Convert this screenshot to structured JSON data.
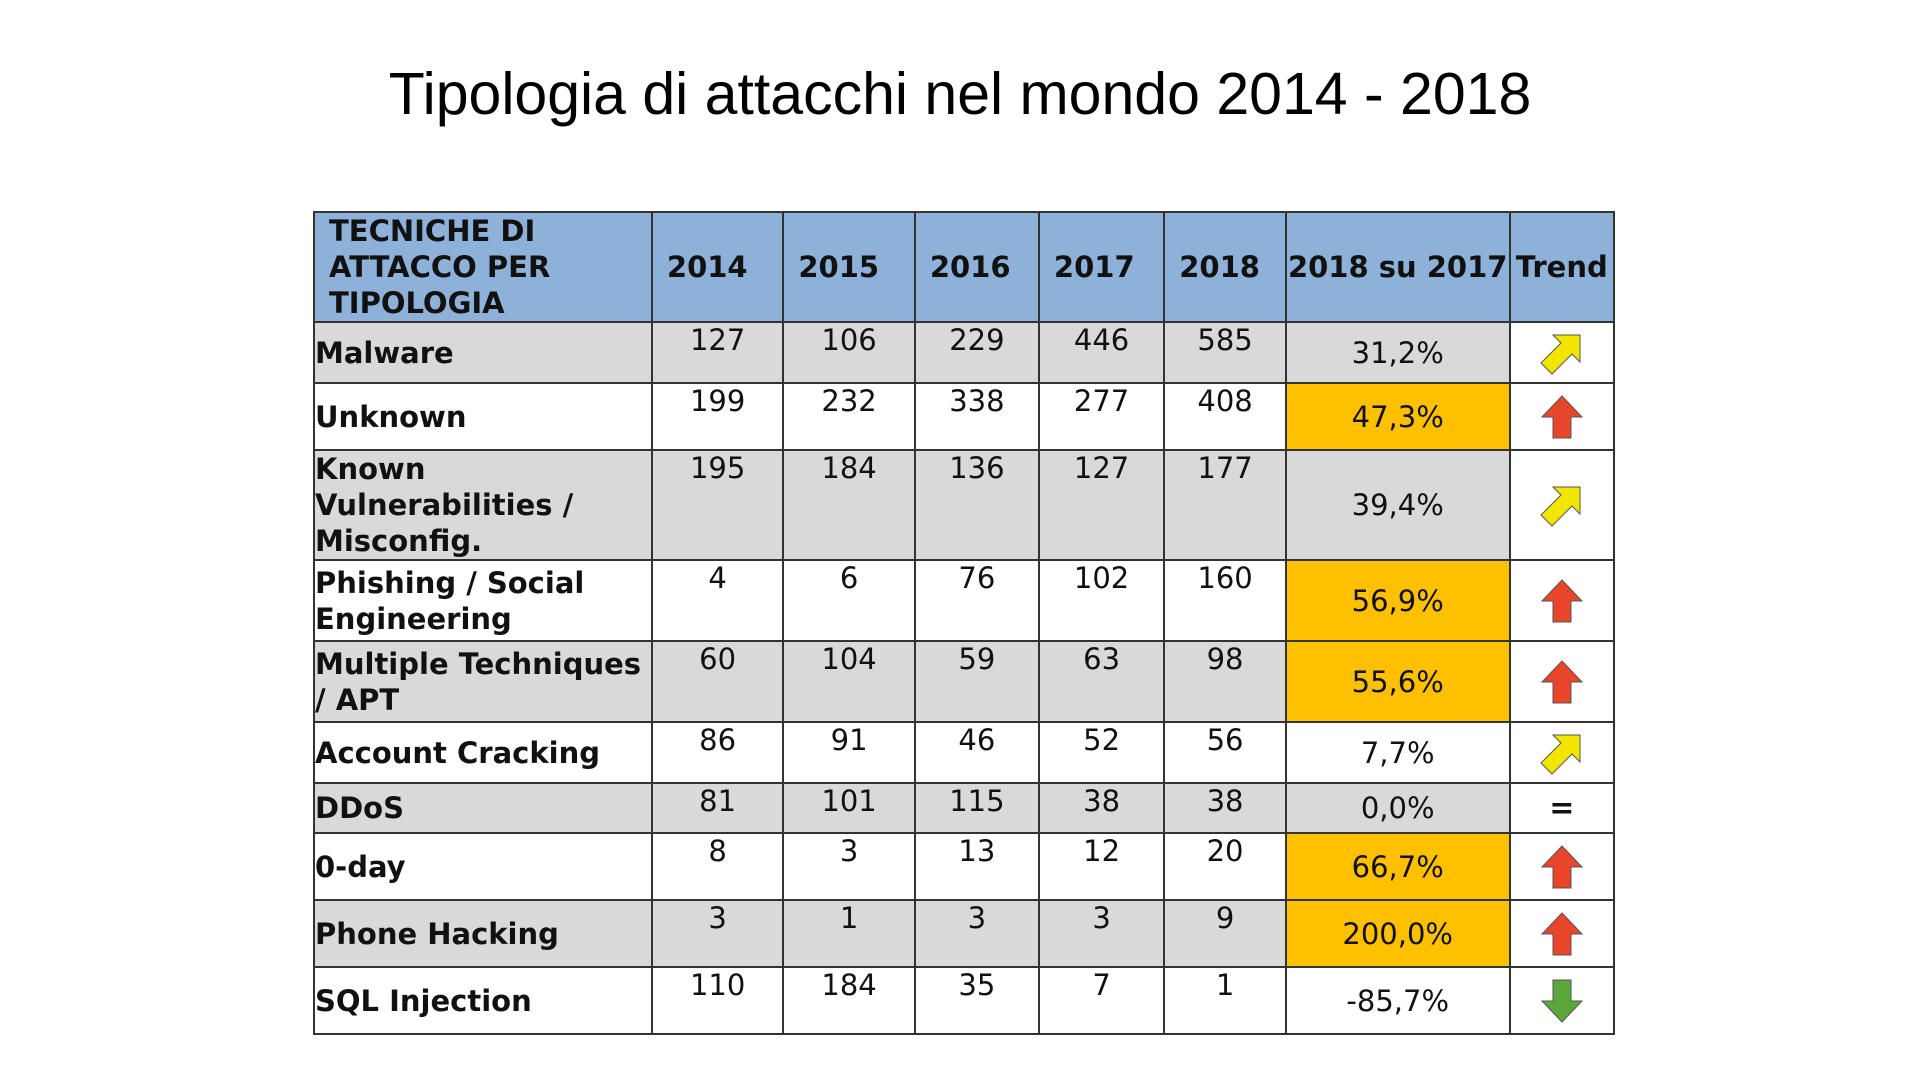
{
  "slide": {
    "title": "Tipologia di attacchi nel mondo 2014 - 2018"
  },
  "table": {
    "headers": [
      "TECNICHE DI ATTACCO PER TIPOLOGIA",
      "2014",
      "2015",
      "2016",
      "2017",
      "2018",
      "2018 su 2017",
      "Trend"
    ],
    "rows": [
      {
        "name": "Malware",
        "values": [
          "127",
          "106",
          "229",
          "446",
          "585"
        ],
        "change": "31,2%",
        "highlight": false,
        "trend": "up-right-arrow-icon",
        "shade": true
      },
      {
        "name": "Unknown",
        "values": [
          "199",
          "232",
          "338",
          "277",
          "408"
        ],
        "change": "47,3%",
        "highlight": true,
        "trend": "up-arrow-icon",
        "shade": false
      },
      {
        "name": "Known Vulnerabilities / Misconfig.",
        "values": [
          "195",
          "184",
          "136",
          "127",
          "177"
        ],
        "change": "39,4%",
        "highlight": false,
        "trend": "up-right-arrow-icon",
        "shade": true
      },
      {
        "name": "Phishing / Social Engineering",
        "values": [
          "4",
          "6",
          "76",
          "102",
          "160"
        ],
        "change": "56,9%",
        "highlight": true,
        "trend": "up-arrow-icon",
        "shade": false
      },
      {
        "name": "Multiple Techniques / APT",
        "values": [
          "60",
          "104",
          "59",
          "63",
          "98"
        ],
        "change": "55,6%",
        "highlight": true,
        "trend": "up-arrow-icon",
        "shade": true
      },
      {
        "name": "Account Cracking",
        "values": [
          "86",
          "91",
          "46",
          "52",
          "56"
        ],
        "change": "7,7%",
        "highlight": false,
        "trend": "up-right-arrow-icon",
        "shade": false
      },
      {
        "name": "DDoS",
        "values": [
          "81",
          "101",
          "115",
          "38",
          "38"
        ],
        "change": "0,0%",
        "highlight": false,
        "trend": "equal-sign-icon",
        "shade": true
      },
      {
        "name": "0-day",
        "values": [
          "8",
          "3",
          "13",
          "12",
          "20"
        ],
        "change": "66,7%",
        "highlight": true,
        "trend": "up-arrow-icon",
        "shade": false
      },
      {
        "name": "Phone Hacking",
        "values": [
          "3",
          "1",
          "3",
          "3",
          "9"
        ],
        "change": "200,0%",
        "highlight": true,
        "trend": "up-arrow-icon",
        "shade": true
      },
      {
        "name": "SQL Injection",
        "values": [
          "110",
          "184",
          "35",
          "7",
          "1"
        ],
        "change": "-85,7%",
        "highlight": false,
        "trend": "down-arrow-icon",
        "shade": false
      }
    ]
  },
  "colors": {
    "header_bg": "#8db1d9",
    "row_shade": "#d9d9d9",
    "highlight": "#ffc000",
    "arrow_up": "#e8452a",
    "arrow_diag": "#f2e600",
    "arrow_down": "#5aa83a"
  }
}
